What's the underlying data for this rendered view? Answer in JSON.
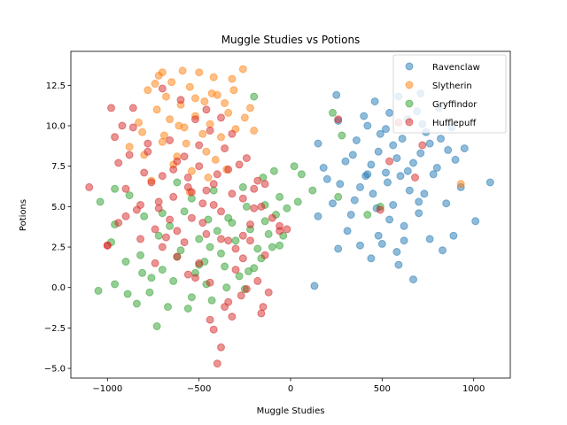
{
  "chart_data": {
    "type": "scatter",
    "title": "Muggle Studies vs Potions",
    "xlabel": "Muggle Studies",
    "ylabel": "Potions",
    "xlim": [
      -1200,
      1200
    ],
    "ylim": [
      -5.6,
      14.6
    ],
    "x_ticks": [
      -1000,
      -500,
      0,
      500,
      1000
    ],
    "x_tick_labels": [
      "−1000",
      "−500",
      "0",
      "500",
      "1000"
    ],
    "y_ticks": [
      -5.0,
      -2.5,
      0.0,
      2.5,
      5.0,
      7.5,
      10.0,
      12.5
    ],
    "y_tick_labels": [
      "−5.0",
      "−2.5",
      "0.0",
      "2.5",
      "5.0",
      "7.5",
      "10.0",
      "12.5"
    ],
    "legend_position": "top-right",
    "grid": false,
    "series": [
      {
        "name": "Ravenclaw",
        "color": "#1f77b4",
        "points": [
          [
            130,
            0.1
          ],
          [
            670,
            0.5
          ],
          [
            590,
            1.4
          ],
          [
            440,
            1.8
          ],
          [
            830,
            2.3
          ],
          [
            260,
            2.4
          ],
          [
            380,
            2.6
          ],
          [
            500,
            2.7
          ],
          [
            620,
            2.9
          ],
          [
            760,
            3.0
          ],
          [
            890,
            3.2
          ],
          [
            1010,
            4.1
          ],
          [
            150,
            4.4
          ],
          [
            330,
            4.5
          ],
          [
            470,
            4.9
          ],
          [
            560,
            5.1
          ],
          [
            700,
            5.3
          ],
          [
            850,
            5.2
          ],
          [
            930,
            6.2
          ],
          [
            1090,
            6.5
          ],
          [
            200,
            6.7
          ],
          [
            410,
            6.9
          ],
          [
            520,
            7.1
          ],
          [
            640,
            7.2
          ],
          [
            780,
            7.0
          ],
          [
            300,
            7.8
          ],
          [
            440,
            7.6
          ],
          [
            580,
            8.0
          ],
          [
            710,
            8.3
          ],
          [
            860,
            8.5
          ],
          [
            150,
            8.9
          ],
          [
            360,
            9.1
          ],
          [
            490,
            9.5
          ],
          [
            610,
            9.2
          ],
          [
            740,
            9.6
          ],
          [
            880,
            9.9
          ],
          [
            260,
            10.3
          ],
          [
            400,
            10.6
          ],
          [
            540,
            10.8
          ],
          [
            690,
            10.9
          ],
          [
            810,
            11.1
          ],
          [
            460,
            11.5
          ],
          [
            590,
            11.8
          ],
          [
            710,
            12.0
          ],
          [
            250,
            11.9
          ],
          [
            380,
            6.2
          ],
          [
            450,
            5.8
          ],
          [
            530,
            6.5
          ],
          [
            600,
            6.9
          ],
          [
            670,
            7.7
          ],
          [
            350,
            5.4
          ],
          [
            420,
            7.0
          ],
          [
            480,
            8.4
          ],
          [
            560,
            8.8
          ],
          [
            650,
            6.0
          ],
          [
            730,
            5.8
          ],
          [
            800,
            7.4
          ],
          [
            540,
            4.2
          ],
          [
            620,
            3.8
          ],
          [
            700,
            4.6
          ],
          [
            230,
            5.2
          ],
          [
            310,
            3.5
          ],
          [
            480,
            3.2
          ],
          [
            580,
            2.2
          ],
          [
            760,
            8.9
          ],
          [
            820,
            9.2
          ],
          [
            900,
            7.9
          ],
          [
            180,
            7.4
          ],
          [
            340,
            8.2
          ],
          [
            520,
            9.8
          ],
          [
            640,
            10.4
          ],
          [
            720,
            10.1
          ],
          [
            420,
            10.0
          ],
          [
            270,
            6.4
          ],
          [
            950,
            8.6
          ]
        ]
      },
      {
        "name": "Slytherin",
        "color": "#ff7f0e",
        "points": [
          [
            -760,
            6.6
          ],
          [
            -540,
            7.2
          ],
          [
            -620,
            8.1
          ],
          [
            -460,
            8.4
          ],
          [
            -700,
            9.0
          ],
          [
            -380,
            9.3
          ],
          [
            -810,
            9.6
          ],
          [
            -580,
            9.9
          ],
          [
            -440,
            10.1
          ],
          [
            -660,
            10.4
          ],
          [
            -520,
            10.6
          ],
          [
            -340,
            10.8
          ],
          [
            -730,
            11.0
          ],
          [
            -600,
            11.3
          ],
          [
            -470,
            11.5
          ],
          [
            -400,
            11.9
          ],
          [
            -780,
            12.2
          ],
          [
            -550,
            12.4
          ],
          [
            -650,
            12.7
          ],
          [
            -320,
            12.9
          ],
          [
            -720,
            13.1
          ],
          [
            -500,
            13.3
          ],
          [
            -260,
            13.5
          ],
          [
            -590,
            13.4
          ],
          [
            -430,
            12.0
          ],
          [
            -360,
            11.4
          ],
          [
            -690,
            9.4
          ],
          [
            -570,
            8.9
          ],
          [
            -480,
            9.5
          ],
          [
            -300,
            9.8
          ],
          [
            -830,
            10.2
          ],
          [
            -640,
            7.6
          ],
          [
            -410,
            7.9
          ],
          [
            -520,
            11.7
          ],
          [
            -250,
            10.5
          ],
          [
            -200,
            9.7
          ],
          [
            -880,
            8.7
          ],
          [
            -740,
            12.6
          ],
          [
            -610,
            10.0
          ],
          [
            -350,
            7.3
          ],
          [
            -450,
            6.8
          ],
          [
            -550,
            5.9
          ],
          [
            -680,
            11.8
          ],
          [
            -420,
            13.0
          ],
          [
            -310,
            12.2
          ],
          [
            -220,
            11.1
          ],
          [
            -700,
            13.3
          ],
          [
            -800,
            8.2
          ],
          [
            930,
            6.4
          ]
        ]
      },
      {
        "name": "Gryffindor",
        "color": "#2ca02c",
        "points": [
          [
            -1050,
            -0.2
          ],
          [
            -960,
            0.2
          ],
          [
            -890,
            -0.4
          ],
          [
            -840,
            -1.0
          ],
          [
            -730,
            -2.4
          ],
          [
            -670,
            -1.2
          ],
          [
            -560,
            -1.3
          ],
          [
            -430,
            -0.8
          ],
          [
            -350,
            0.0
          ],
          [
            -250,
            -0.1
          ],
          [
            -200,
            1.2
          ],
          [
            -160,
            1.8
          ],
          [
            -100,
            2.5
          ],
          [
            -60,
            2.6
          ],
          [
            -40,
            3.2
          ],
          [
            -980,
            2.8
          ],
          [
            -900,
            1.6
          ],
          [
            -820,
            2.0
          ],
          [
            -760,
            0.6
          ],
          [
            -700,
            1.1
          ],
          [
            -640,
            0.4
          ],
          [
            -600,
            2.3
          ],
          [
            -520,
            0.9
          ],
          [
            -470,
            1.6
          ],
          [
            -380,
            2.1
          ],
          [
            -300,
            2.9
          ],
          [
            -220,
            3.6
          ],
          [
            -140,
            4.1
          ],
          [
            -80,
            4.5
          ],
          [
            -20,
            4.9
          ],
          [
            40,
            5.3
          ],
          [
            -1040,
            5.3
          ],
          [
            -960,
            6.1
          ],
          [
            -880,
            5.7
          ],
          [
            -800,
            4.4
          ],
          [
            -720,
            3.2
          ],
          [
            -660,
            3.8
          ],
          [
            -580,
            4.7
          ],
          [
            -500,
            3.0
          ],
          [
            -440,
            2.5
          ],
          [
            -360,
            1.3
          ],
          [
            -280,
            0.7
          ],
          [
            -180,
            2.4
          ],
          [
            -120,
            3.3
          ],
          [
            -60,
            5.6
          ],
          [
            20,
            7.5
          ],
          [
            60,
            7.0
          ],
          [
            120,
            6.0
          ],
          [
            230,
            10.8
          ],
          [
            280,
            9.4
          ],
          [
            260,
            5.6
          ],
          [
            490,
            5.0
          ],
          [
            420,
            4.5
          ],
          [
            -620,
            6.5
          ],
          [
            -540,
            5.5
          ],
          [
            -420,
            6.0
          ],
          [
            -320,
            4.0
          ],
          [
            -240,
            5.0
          ],
          [
            -150,
            6.8
          ],
          [
            -90,
            7.2
          ],
          [
            -700,
            4.6
          ],
          [
            -810,
            0.9
          ],
          [
            -770,
            -0.3
          ],
          [
            -540,
            -0.6
          ],
          [
            -460,
            0.2
          ],
          [
            -400,
            3.5
          ],
          [
            -340,
            4.3
          ],
          [
            -260,
            6.2
          ],
          [
            -200,
            11.8
          ],
          [
            -140,
            5.1
          ],
          [
            -960,
            3.9
          ],
          [
            -620,
            1.9
          ],
          [
            -500,
            1.4
          ],
          [
            -450,
            4.2
          ],
          [
            -230,
            1.0
          ]
        ]
      },
      {
        "name": "Hufflepuff",
        "color": "#d62728",
        "points": [
          [
            -1100,
            6.2
          ],
          [
            -1000,
            2.6
          ],
          [
            -980,
            11.1
          ],
          [
            -940,
            7.7
          ],
          [
            -900,
            4.4
          ],
          [
            -860,
            9.9
          ],
          [
            -820,
            5.1
          ],
          [
            -780,
            8.4
          ],
          [
            -740,
            3.6
          ],
          [
            -700,
            6.9
          ],
          [
            -660,
            4.2
          ],
          [
            -620,
            7.8
          ],
          [
            -580,
            2.8
          ],
          [
            -540,
            5.9
          ],
          [
            -500,
            8.8
          ],
          [
            -460,
            3.3
          ],
          [
            -420,
            6.4
          ],
          [
            -380,
            4.7
          ],
          [
            -340,
            7.3
          ],
          [
            -300,
            2.4
          ],
          [
            -260,
            5.5
          ],
          [
            -220,
            3.9
          ],
          [
            -180,
            6.6
          ],
          [
            -140,
            2.0
          ],
          [
            -100,
            4.3
          ],
          [
            -60,
            3.5
          ],
          [
            -20,
            3.6
          ],
          [
            -400,
            -4.7
          ],
          [
            -380,
            -3.7
          ],
          [
            -420,
            -2.6
          ],
          [
            -320,
            -1.8
          ],
          [
            -360,
            -1.2
          ],
          [
            -270,
            -0.5
          ],
          [
            -440,
            0.3
          ],
          [
            -500,
            1.5
          ],
          [
            -560,
            0.8
          ],
          [
            -620,
            1.9
          ],
          [
            -680,
            3.1
          ],
          [
            -720,
            5.3
          ],
          [
            -760,
            6.5
          ],
          [
            -800,
            7.1
          ],
          [
            -840,
            4.8
          ],
          [
            -880,
            8.2
          ],
          [
            -920,
            10.0
          ],
          [
            -960,
            9.3
          ],
          [
            -860,
            11.1
          ],
          [
            -700,
            12.3
          ],
          [
            -600,
            11.6
          ],
          [
            -520,
            10.4
          ],
          [
            -440,
            9.7
          ],
          [
            -360,
            8.6
          ],
          [
            -280,
            7.6
          ],
          [
            -200,
            6.1
          ],
          [
            -160,
            5.0
          ],
          [
            -120,
            -0.3
          ],
          [
            -160,
            -1.6
          ],
          [
            -150,
            -1.2
          ],
          [
            -240,
            -0.1
          ],
          [
            -300,
            1.1
          ],
          [
            -340,
            2.9
          ],
          [
            -480,
            4.0
          ],
          [
            -560,
            6.8
          ],
          [
            -640,
            5.6
          ],
          [
            -660,
            9.1
          ],
          [
            -580,
            8.1
          ],
          [
            -500,
            7.5
          ],
          [
            -420,
            5.1
          ],
          [
            -380,
            3.0
          ],
          [
            -460,
            6.0
          ],
          [
            -540,
            4.3
          ],
          [
            -620,
            3.5
          ],
          [
            -700,
            2.5
          ],
          [
            -740,
            1.5
          ],
          [
            -780,
            8.9
          ],
          [
            -820,
            3.0
          ],
          [
            -900,
            6.1
          ],
          [
            -940,
            4.0
          ],
          [
            -1000,
            2.6
          ],
          [
            -460,
            11.0
          ],
          [
            -380,
            10.5
          ],
          [
            -320,
            9.5
          ],
          [
            -240,
            8.0
          ],
          [
            -200,
            4.9
          ],
          [
            -260,
            3.2
          ],
          [
            -320,
            5.8
          ],
          [
            -400,
            7.0
          ],
          [
            -480,
            5.2
          ],
          [
            -560,
            6.2
          ],
          [
            -640,
            7.3
          ],
          [
            -720,
            4.9
          ],
          [
            -260,
            1.8
          ],
          [
            -220,
            2.9
          ],
          [
            -180,
            0.4
          ],
          [
            540,
            7.8
          ],
          [
            490,
            4.8
          ],
          [
            680,
            6.8
          ],
          [
            720,
            8.8
          ],
          [
            260,
            10.4
          ],
          [
            590,
            10.2
          ],
          [
            -140,
            6.4
          ],
          [
            -60,
            3.8
          ],
          [
            -520,
            0.6
          ],
          [
            -340,
            -0.9
          ],
          [
            -440,
            -2.0
          ]
        ]
      }
    ]
  }
}
